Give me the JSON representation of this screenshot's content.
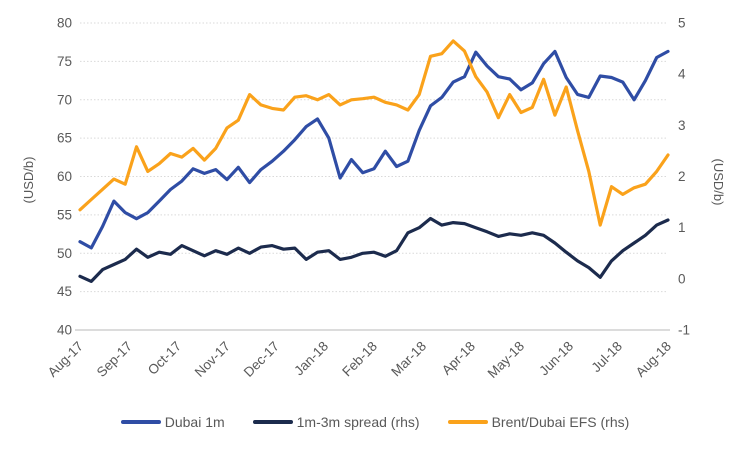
{
  "chart_data": {
    "type": "line",
    "title": "",
    "x_axis": {
      "tick_labels": [
        "Aug-17",
        "Sep-17",
        "Oct-17",
        "Nov-17",
        "Dec-17",
        "Jan-18",
        "Feb-18",
        "Mar-18",
        "Apr-18",
        "May-18",
        "Jun-18",
        "Jul-18",
        "Aug-18"
      ],
      "label_rotation_deg": -45
    },
    "left_axis": {
      "label": "(USD/b)",
      "min": 40,
      "max": 80,
      "ticks": [
        40,
        45,
        50,
        55,
        60,
        65,
        70,
        75,
        80
      ]
    },
    "right_axis": {
      "label": "(USD/b)",
      "min": -1,
      "max": 5,
      "ticks": [
        -1,
        0,
        1,
        2,
        3,
        4,
        5
      ]
    },
    "grid": "horizontal-dotted",
    "legend_position": "bottom",
    "x_resolution": "weekly, index 0 = Aug-2017 through index 52 = Aug-2018",
    "series": [
      {
        "name": "Dubai 1m",
        "axis": "left",
        "color": "#2F4DA5",
        "values": [
          51.5,
          50.7,
          53.5,
          56.8,
          55.3,
          54.5,
          55.3,
          56.8,
          58.3,
          59.4,
          61.0,
          60.4,
          60.9,
          59.6,
          61.2,
          59.2,
          60.9,
          62.0,
          63.3,
          64.8,
          66.5,
          67.5,
          65.0,
          59.8,
          62.2,
          60.5,
          61.0,
          63.3,
          61.3,
          62.0,
          66.0,
          69.2,
          70.3,
          72.3,
          73.0,
          76.2,
          74.4,
          73.0,
          72.7,
          71.3,
          72.2,
          74.7,
          76.3,
          72.9,
          70.7,
          70.3,
          73.1,
          72.9,
          72.3,
          70.0,
          72.5,
          75.5,
          76.3
        ]
      },
      {
        "name": "1m-3m spread (rhs)",
        "axis": "right",
        "color": "#1C2B4D",
        "values": [
          0.05,
          -0.05,
          0.18,
          0.28,
          0.38,
          0.58,
          0.42,
          0.52,
          0.48,
          0.65,
          0.55,
          0.45,
          0.55,
          0.48,
          0.6,
          0.5,
          0.62,
          0.65,
          0.58,
          0.6,
          0.38,
          0.52,
          0.55,
          0.38,
          0.42,
          0.5,
          0.52,
          0.44,
          0.55,
          0.9,
          1.0,
          1.18,
          1.05,
          1.1,
          1.08,
          1.0,
          0.92,
          0.83,
          0.88,
          0.85,
          0.9,
          0.85,
          0.7,
          0.52,
          0.35,
          0.22,
          0.03,
          0.35,
          0.55,
          0.7,
          0.85,
          1.05,
          1.15
        ]
      },
      {
        "name": "Brent/Dubai EFS (rhs)",
        "axis": "right",
        "color": "#FAA21B",
        "values": [
          1.35,
          1.55,
          1.75,
          1.95,
          1.85,
          2.58,
          2.1,
          2.25,
          2.45,
          2.38,
          2.55,
          2.32,
          2.55,
          2.95,
          3.1,
          3.6,
          3.4,
          3.33,
          3.3,
          3.55,
          3.58,
          3.5,
          3.6,
          3.4,
          3.5,
          3.52,
          3.55,
          3.45,
          3.4,
          3.3,
          3.6,
          4.35,
          4.4,
          4.65,
          4.45,
          3.95,
          3.65,
          3.15,
          3.6,
          3.25,
          3.35,
          3.9,
          3.2,
          3.75,
          2.9,
          2.1,
          1.05,
          1.8,
          1.65,
          1.78,
          1.85,
          2.1,
          2.42
        ]
      }
    ],
    "style": {
      "line_width": 3.2,
      "grid_color": "#D9D9D9",
      "axis_line_color": "#C6C6C6",
      "text_color": "#595959",
      "background": "#FFFFFF"
    }
  }
}
